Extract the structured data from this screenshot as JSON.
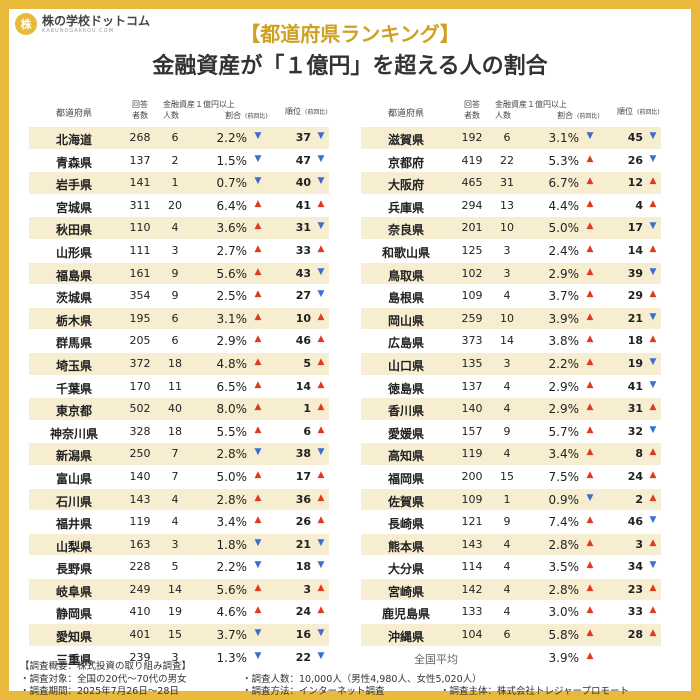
{
  "brand": {
    "mark": "株",
    "name": "株の学校ドットコム",
    "sub": "KABUNOGAKKOU.COM"
  },
  "title_top": "【都道府県ランキング】",
  "title_main": "金融資産が「１億円」を超える人の割合",
  "headers": {
    "pref": "都道府県",
    "resp": "回答\n者数",
    "group": "金融資産１億円以上",
    "cnt": "人数",
    "rate": "割合",
    "prev": "(前回比)",
    "rank": "順位",
    "rank_prev": "(前回比)"
  },
  "left": [
    {
      "pref": "北海道",
      "resp": "268",
      "cnt": "6",
      "rate": "2.2%",
      "rd": "down",
      "rank": "37",
      "kd": "down"
    },
    {
      "pref": "青森県",
      "resp": "137",
      "cnt": "2",
      "rate": "1.5%",
      "rd": "down",
      "rank": "47",
      "kd": "down"
    },
    {
      "pref": "岩手県",
      "resp": "141",
      "cnt": "1",
      "rate": "0.7%",
      "rd": "down",
      "rank": "40",
      "kd": "down"
    },
    {
      "pref": "宮城県",
      "resp": "311",
      "cnt": "20",
      "rate": "6.4%",
      "rd": "up",
      "rank": "41",
      "kd": "up"
    },
    {
      "pref": "秋田県",
      "resp": "110",
      "cnt": "4",
      "rate": "3.6%",
      "rd": "up",
      "rank": "31",
      "kd": "down"
    },
    {
      "pref": "山形県",
      "resp": "111",
      "cnt": "3",
      "rate": "2.7%",
      "rd": "up",
      "rank": "33",
      "kd": "up"
    },
    {
      "pref": "福島県",
      "resp": "161",
      "cnt": "9",
      "rate": "5.6%",
      "rd": "up",
      "rank": "43",
      "kd": "down"
    },
    {
      "pref": "茨城県",
      "resp": "354",
      "cnt": "9",
      "rate": "2.5%",
      "rd": "up",
      "rank": "27",
      "kd": "down"
    },
    {
      "pref": "栃木県",
      "resp": "195",
      "cnt": "6",
      "rate": "3.1%",
      "rd": "up",
      "rank": "10",
      "kd": "up"
    },
    {
      "pref": "群馬県",
      "resp": "205",
      "cnt": "6",
      "rate": "2.9%",
      "rd": "up",
      "rank": "46",
      "kd": "up"
    },
    {
      "pref": "埼玉県",
      "resp": "372",
      "cnt": "18",
      "rate": "4.8%",
      "rd": "up",
      "rank": "5",
      "kd": "up"
    },
    {
      "pref": "千葉県",
      "resp": "170",
      "cnt": "11",
      "rate": "6.5%",
      "rd": "up",
      "rank": "14",
      "kd": "up"
    },
    {
      "pref": "東京都",
      "resp": "502",
      "cnt": "40",
      "rate": "8.0%",
      "rd": "up",
      "rank": "1",
      "kd": "up"
    },
    {
      "pref": "神奈川県",
      "resp": "328",
      "cnt": "18",
      "rate": "5.5%",
      "rd": "up",
      "rank": "6",
      "kd": "up"
    },
    {
      "pref": "新潟県",
      "resp": "250",
      "cnt": "7",
      "rate": "2.8%",
      "rd": "down",
      "rank": "38",
      "kd": "down"
    },
    {
      "pref": "富山県",
      "resp": "140",
      "cnt": "7",
      "rate": "5.0%",
      "rd": "up",
      "rank": "17",
      "kd": "up"
    },
    {
      "pref": "石川県",
      "resp": "143",
      "cnt": "4",
      "rate": "2.8%",
      "rd": "up",
      "rank": "36",
      "kd": "up"
    },
    {
      "pref": "福井県",
      "resp": "119",
      "cnt": "4",
      "rate": "3.4%",
      "rd": "up",
      "rank": "26",
      "kd": "up"
    },
    {
      "pref": "山梨県",
      "resp": "163",
      "cnt": "3",
      "rate": "1.8%",
      "rd": "down",
      "rank": "21",
      "kd": "down"
    },
    {
      "pref": "長野県",
      "resp": "228",
      "cnt": "5",
      "rate": "2.2%",
      "rd": "down",
      "rank": "18",
      "kd": "down"
    },
    {
      "pref": "岐阜県",
      "resp": "249",
      "cnt": "14",
      "rate": "5.6%",
      "rd": "up",
      "rank": "3",
      "kd": "up"
    },
    {
      "pref": "静岡県",
      "resp": "410",
      "cnt": "19",
      "rate": "4.6%",
      "rd": "up",
      "rank": "24",
      "kd": "up"
    },
    {
      "pref": "愛知県",
      "resp": "401",
      "cnt": "15",
      "rate": "3.7%",
      "rd": "down",
      "rank": "16",
      "kd": "down"
    },
    {
      "pref": "三重県",
      "resp": "239",
      "cnt": "3",
      "rate": "1.3%",
      "rd": "down",
      "rank": "22",
      "kd": "down"
    }
  ],
  "right": [
    {
      "pref": "滋賀県",
      "resp": "192",
      "cnt": "6",
      "rate": "3.1%",
      "rd": "down",
      "rank": "45",
      "kd": "down"
    },
    {
      "pref": "京都府",
      "resp": "419",
      "cnt": "22",
      "rate": "5.3%",
      "rd": "up",
      "rank": "26",
      "kd": "down"
    },
    {
      "pref": "大阪府",
      "resp": "465",
      "cnt": "31",
      "rate": "6.7%",
      "rd": "up",
      "rank": "12",
      "kd": "up"
    },
    {
      "pref": "兵庫県",
      "resp": "294",
      "cnt": "13",
      "rate": "4.4%",
      "rd": "up",
      "rank": "4",
      "kd": "up"
    },
    {
      "pref": "奈良県",
      "resp": "201",
      "cnt": "10",
      "rate": "5.0%",
      "rd": "up",
      "rank": "17",
      "kd": "down"
    },
    {
      "pref": "和歌山県",
      "resp": "125",
      "cnt": "3",
      "rate": "2.4%",
      "rd": "up",
      "rank": "14",
      "kd": "up"
    },
    {
      "pref": "鳥取県",
      "resp": "102",
      "cnt": "3",
      "rate": "2.9%",
      "rd": "up",
      "rank": "39",
      "kd": "down"
    },
    {
      "pref": "島根県",
      "resp": "109",
      "cnt": "4",
      "rate": "3.7%",
      "rd": "up",
      "rank": "29",
      "kd": "up"
    },
    {
      "pref": "岡山県",
      "resp": "259",
      "cnt": "10",
      "rate": "3.9%",
      "rd": "up",
      "rank": "21",
      "kd": "down"
    },
    {
      "pref": "広島県",
      "resp": "373",
      "cnt": "14",
      "rate": "3.8%",
      "rd": "up",
      "rank": "18",
      "kd": "up"
    },
    {
      "pref": "山口県",
      "resp": "135",
      "cnt": "3",
      "rate": "2.2%",
      "rd": "up",
      "rank": "19",
      "kd": "down"
    },
    {
      "pref": "徳島県",
      "resp": "137",
      "cnt": "4",
      "rate": "2.9%",
      "rd": "up",
      "rank": "41",
      "kd": "down"
    },
    {
      "pref": "香川県",
      "resp": "140",
      "cnt": "4",
      "rate": "2.9%",
      "rd": "up",
      "rank": "31",
      "kd": "up"
    },
    {
      "pref": "愛媛県",
      "resp": "157",
      "cnt": "9",
      "rate": "5.7%",
      "rd": "up",
      "rank": "32",
      "kd": "down"
    },
    {
      "pref": "高知県",
      "resp": "119",
      "cnt": "4",
      "rate": "3.4%",
      "rd": "up",
      "rank": "8",
      "kd": "up"
    },
    {
      "pref": "福岡県",
      "resp": "200",
      "cnt": "15",
      "rate": "7.5%",
      "rd": "up",
      "rank": "24",
      "kd": "up"
    },
    {
      "pref": "佐賀県",
      "resp": "109",
      "cnt": "1",
      "rate": "0.9%",
      "rd": "down",
      "rank": "2",
      "kd": "up"
    },
    {
      "pref": "長崎県",
      "resp": "121",
      "cnt": "9",
      "rate": "7.4%",
      "rd": "up",
      "rank": "46",
      "kd": "down"
    },
    {
      "pref": "熊本県",
      "resp": "143",
      "cnt": "4",
      "rate": "2.8%",
      "rd": "up",
      "rank": "3",
      "kd": "up"
    },
    {
      "pref": "大分県",
      "resp": "114",
      "cnt": "4",
      "rate": "3.5%",
      "rd": "up",
      "rank": "34",
      "kd": "down"
    },
    {
      "pref": "宮崎県",
      "resp": "142",
      "cnt": "4",
      "rate": "2.8%",
      "rd": "up",
      "rank": "23",
      "kd": "up"
    },
    {
      "pref": "鹿児島県",
      "resp": "133",
      "cnt": "4",
      "rate": "3.0%",
      "rd": "up",
      "rank": "33",
      "kd": "up"
    },
    {
      "pref": "沖縄県",
      "resp": "104",
      "cnt": "6",
      "rate": "5.8%",
      "rd": "up",
      "rank": "28",
      "kd": "up"
    }
  ],
  "average": {
    "label": "全国平均",
    "rate": "3.9%",
    "rd": "up"
  },
  "notes": {
    "summary": "【調査概要：株式投資の取り組み調査】",
    "target": "・調査対象：全国の20代～70代の男女",
    "count": "・調査人数：10,000人（男性4,980人、女性5,020人）",
    "period": "・調査期間：2025年7月26日～28日",
    "method": "・調査方法：インターネット調査",
    "sponsor": "・調査主体：株式会社トレジャープロモート"
  },
  "colors": {
    "accent": "#e8b93a",
    "up": "#e03a1e",
    "down": "#3a6fd0",
    "stripe": "#f7edd0"
  }
}
